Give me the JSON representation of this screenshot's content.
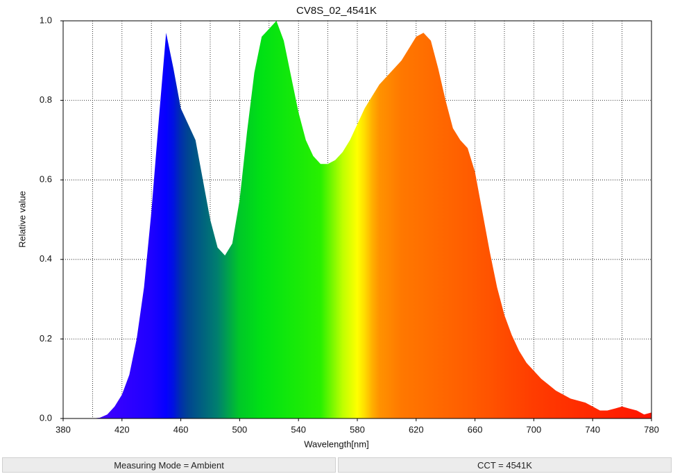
{
  "chart_data": {
    "type": "area",
    "title": "CV8S_02_4541K",
    "x_label": "Wavelength[nm]",
    "y_label": "Relative value",
    "x": [
      400,
      405,
      410,
      415,
      420,
      425,
      430,
      435,
      440,
      445,
      450,
      455,
      460,
      465,
      470,
      475,
      480,
      485,
      490,
      495,
      500,
      505,
      510,
      515,
      520,
      525,
      530,
      535,
      540,
      545,
      550,
      555,
      560,
      565,
      570,
      575,
      580,
      585,
      590,
      595,
      600,
      605,
      610,
      615,
      620,
      625,
      630,
      635,
      640,
      645,
      650,
      655,
      660,
      665,
      670,
      675,
      680,
      685,
      690,
      695,
      700,
      705,
      710,
      715,
      720,
      725,
      730,
      735,
      740,
      745,
      750,
      755,
      760,
      765,
      770,
      775,
      780
    ],
    "values": [
      0,
      0.002,
      0.01,
      0.03,
      0.06,
      0.11,
      0.2,
      0.33,
      0.52,
      0.75,
      0.97,
      0.88,
      0.78,
      0.74,
      0.7,
      0.6,
      0.5,
      0.43,
      0.41,
      0.44,
      0.55,
      0.72,
      0.87,
      0.96,
      0.98,
      1.0,
      0.95,
      0.86,
      0.77,
      0.7,
      0.66,
      0.64,
      0.64,
      0.65,
      0.67,
      0.7,
      0.74,
      0.78,
      0.81,
      0.84,
      0.86,
      0.88,
      0.9,
      0.93,
      0.96,
      0.97,
      0.95,
      0.88,
      0.8,
      0.73,
      0.7,
      0.68,
      0.62,
      0.52,
      0.42,
      0.33,
      0.26,
      0.21,
      0.17,
      0.14,
      0.12,
      0.1,
      0.085,
      0.07,
      0.06,
      0.05,
      0.045,
      0.04,
      0.03,
      0.02,
      0.02,
      0.025,
      0.03,
      0.025,
      0.02,
      0.01,
      0.015
    ],
    "xlim": [
      380,
      780
    ],
    "ylim": [
      0,
      1
    ],
    "xticks": [
      380,
      420,
      460,
      500,
      540,
      580,
      620,
      660,
      700,
      740,
      780
    ],
    "xminorticks": [
      400,
      440,
      480,
      520,
      560,
      600,
      640,
      680,
      720,
      760
    ],
    "yticks": [
      {
        "value": 0,
        "label": "0.0"
      },
      0.2,
      0.4,
      0.6,
      0.8,
      {
        "value": 1,
        "label": "1.0"
      }
    ],
    "grid": true
  },
  "status_bar": [
    "Measuring Mode = Ambient",
    "CCT = 4541K"
  ]
}
